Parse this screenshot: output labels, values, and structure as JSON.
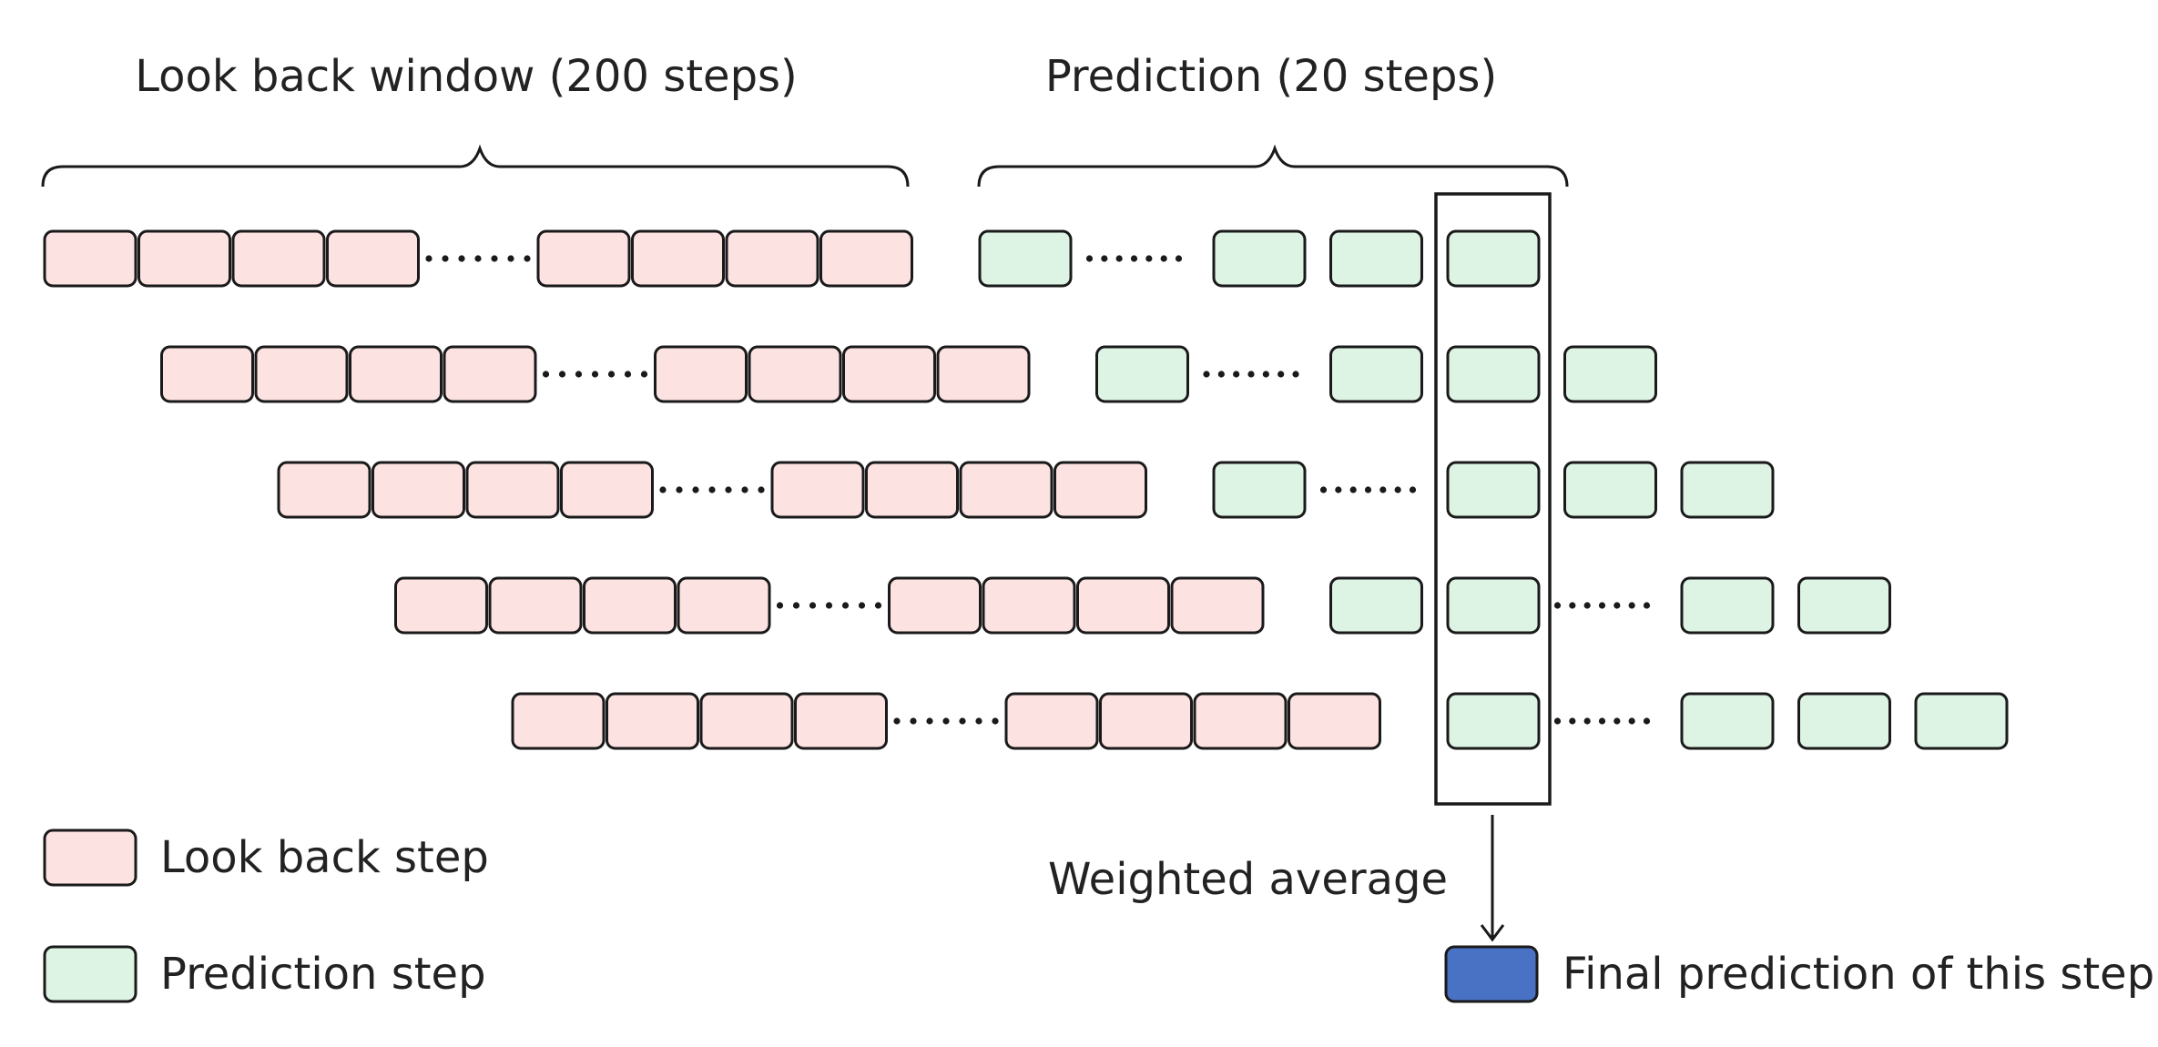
{
  "colors": {
    "lookback": "#fde2e2",
    "prediction": "#ddf4e4",
    "final": "#4a72c4",
    "stroke": "#1a1a1a",
    "text": "#222222"
  },
  "labels": {
    "lookback_window": "Look back window (200 steps)",
    "prediction_window": "Prediction (20 steps)",
    "weighted_average": "Weighted average"
  },
  "legend": {
    "lookback_label": "Look back step",
    "prediction_label": "Prediction step",
    "final_label": "Final prediction of this step"
  },
  "rows": [
    {
      "lookback_before_gap": 4,
      "lookback_after_gap": 4,
      "predictions": "P..PPP"
    },
    {
      "lookback_before_gap": 4,
      "lookback_after_gap": 4,
      "predictions": "P..PPP"
    },
    {
      "lookback_before_gap": 4,
      "lookback_after_gap": 4,
      "predictions": "P..PPP"
    },
    {
      "lookback_before_gap": 4,
      "lookback_after_gap": 4,
      "predictions": "PP..PP"
    },
    {
      "lookback_before_gap": 4,
      "lookback_after_gap": 4,
      "predictions": "P..PPP"
    }
  ]
}
